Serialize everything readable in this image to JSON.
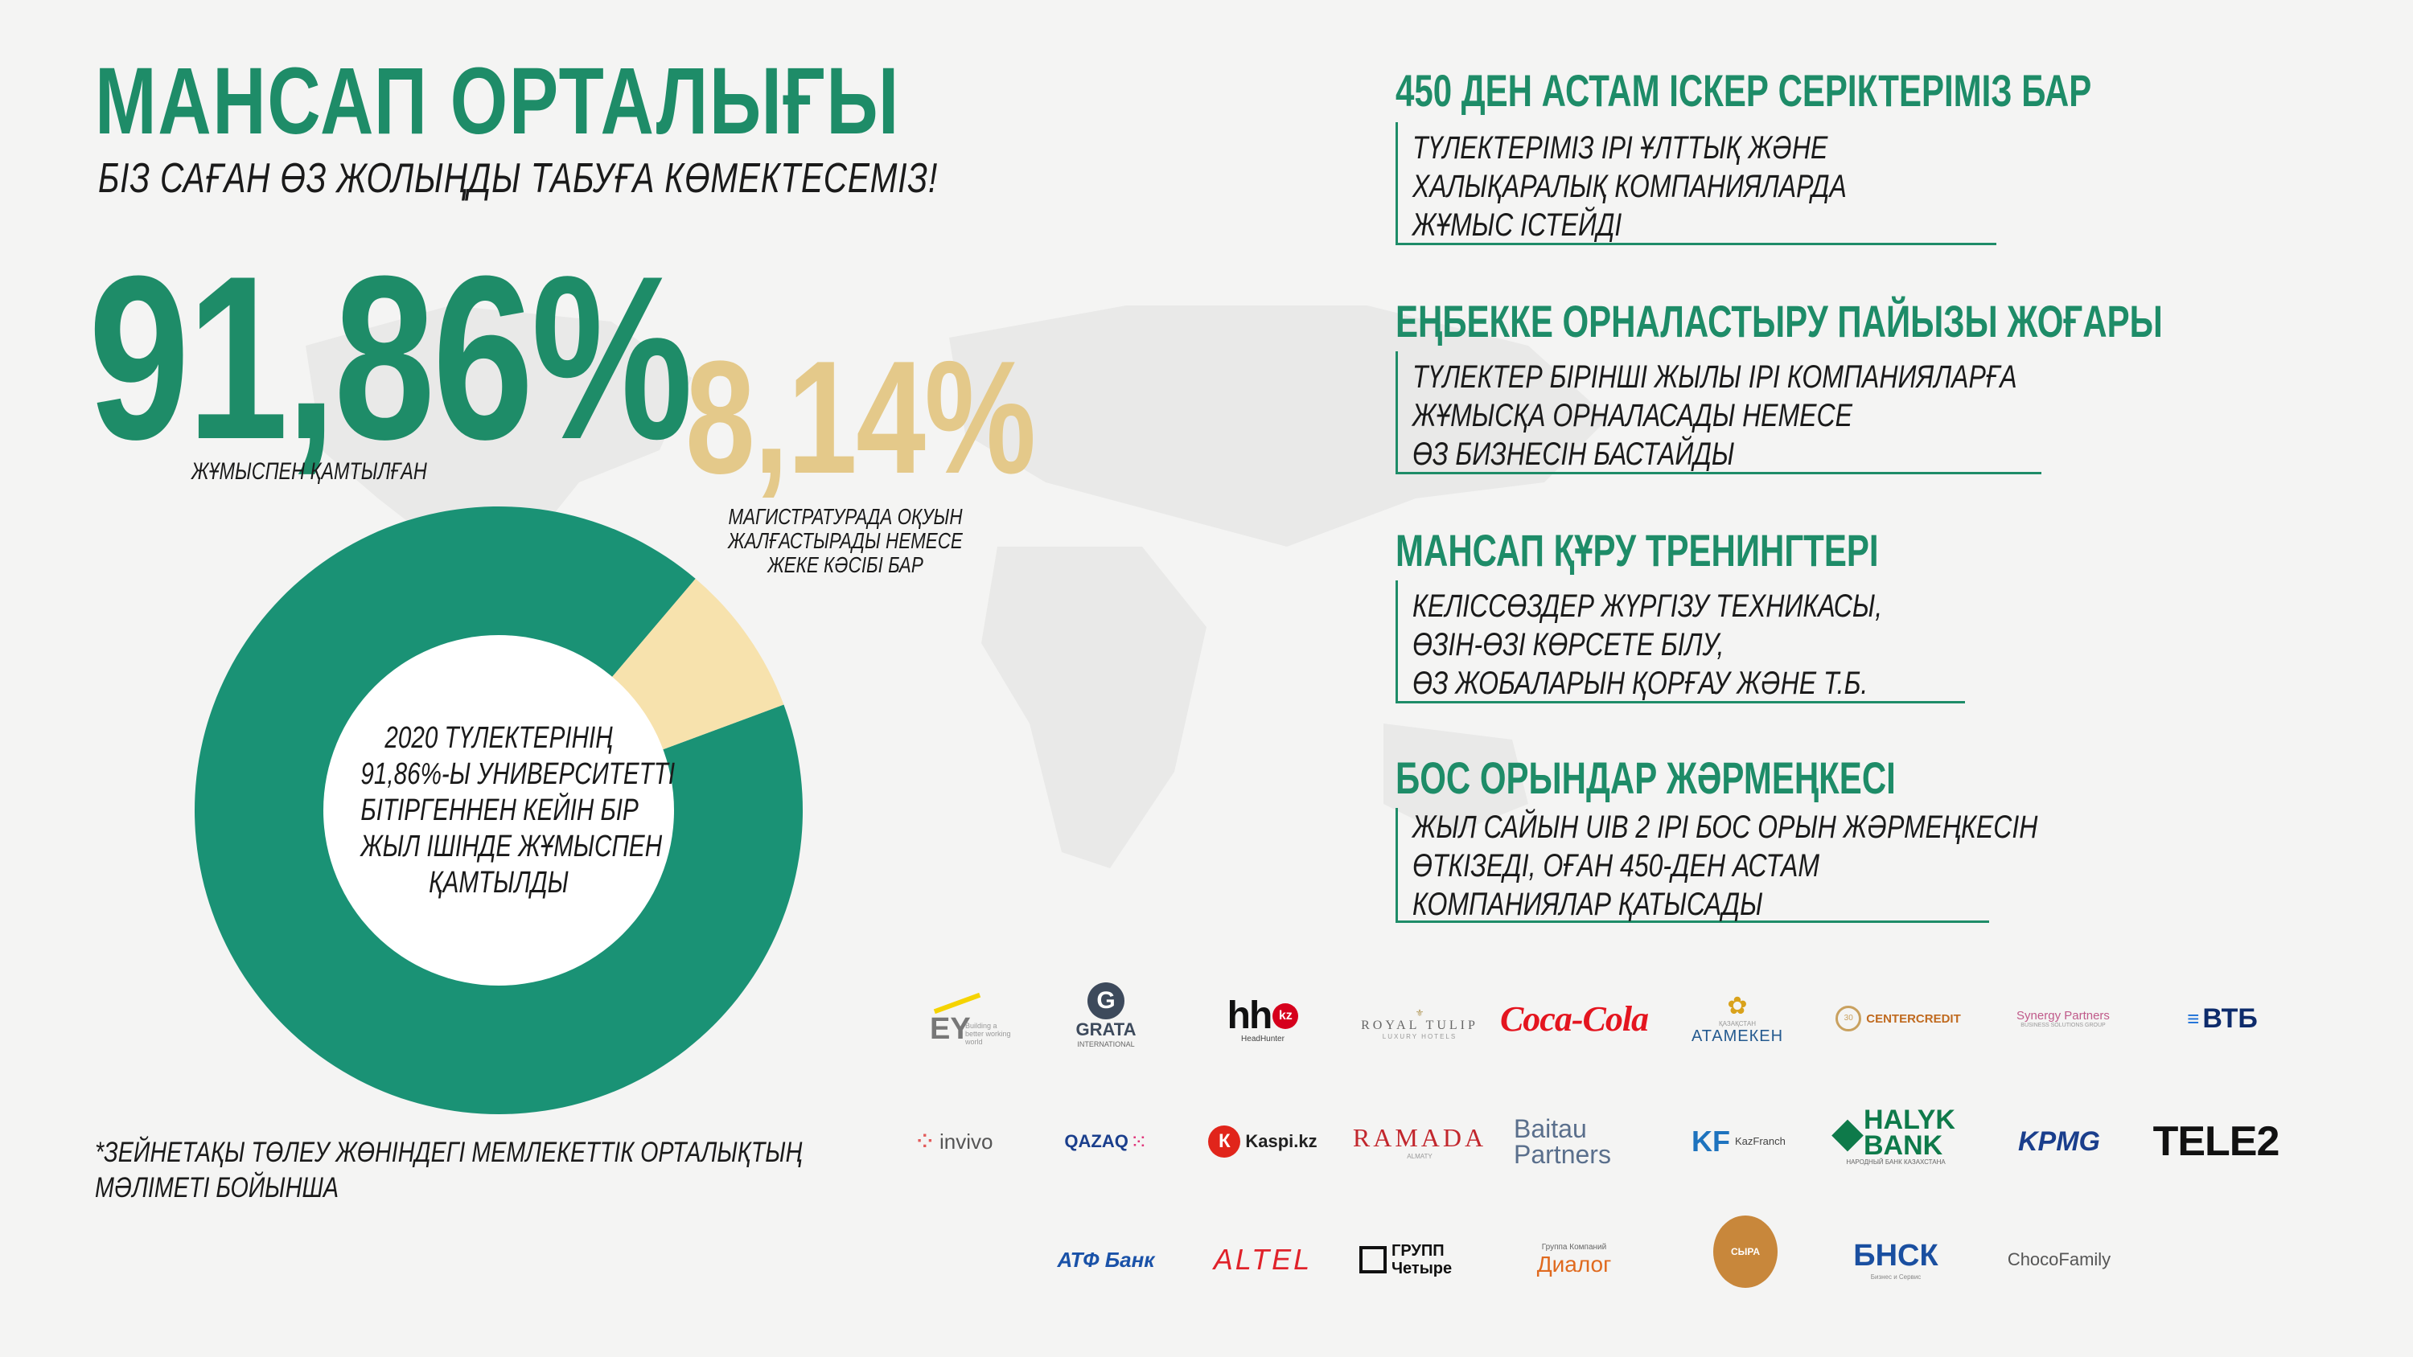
{
  "header": {
    "title": "МАНСАП ОРТАЛЫҒЫ",
    "subtitle": "БІЗ САҒАН ӨЗ ЖОЛЫҢДЫ ТАБУҒА КӨМЕКТЕСЕМІЗ!"
  },
  "stats": {
    "employed_value": "91,86%",
    "employed_label": "ЖҰМЫСПЕН ҚАМТЫЛҒАН",
    "other_value": "8,14%",
    "other_label": [
      "МАГИСТРАТУРАДА ОҚУЫН",
      "ЖАЛҒАСТЫРАДЫ НЕМЕСЕ",
      "ЖЕКЕ КӘСІБІ БАР"
    ]
  },
  "chart_data": {
    "type": "pie",
    "categories": [
      "ЖҰМЫСПЕН ҚАМТЫЛҒАН",
      "МАГИСТРАТУРАДА ОҚУЫН ЖАЛҒАСТЫРАДЫ НЕМЕСЕ ЖЕКЕ КӘСІБІ БАР"
    ],
    "values": [
      91.86,
      8.14
    ],
    "colors": [
      "#1a9275",
      "#f7e2ad"
    ],
    "center_text": [
      "2020 ТҮЛЕКТЕРІНІҢ",
      "91,86%-Ы УНИВЕРСИТЕТТІ",
      "БІТІРГЕННЕН КЕЙІН БІР",
      "ЖЫЛ ІШІНДЕ ЖҰМЫСПЕН",
      "ҚАМТЫЛДЫ"
    ]
  },
  "footnote": [
    "*ЗЕЙНЕТАҚЫ ТӨЛЕУ ЖӨНІНДЕГІ МЕМЛЕКЕТТІК ОРТАЛЫҚТЫҢ",
    "МӘЛІМЕТІ БОЙЫНША"
  ],
  "blocks": [
    {
      "heading": "450 ДЕН АСТАМ ІСКЕР СЕРІКТЕРІМІЗ БАР",
      "lines": [
        "ТҮЛЕКТЕРІМІЗ ІРІ ҰЛТТЫҚ ЖӘНЕ",
        "ХАЛЫҚАРАЛЫҚ КОМПАНИЯЛАРДА",
        "ЖҰМЫС ІСТЕЙДІ"
      ]
    },
    {
      "heading": "ЕҢБЕККЕ ОРНАЛАСТЫРУ ПАЙЫЗЫ ЖОҒАРЫ",
      "lines": [
        "ТҮЛЕКТЕР БІРІНШІ ЖЫЛЫ ІРІ КОМПАНИЯЛАРҒА",
        "ЖҰМЫСҚА ОРНАЛАСАДЫ НЕМЕСЕ",
        "ӨЗ БИЗНЕСІН БАСТАЙДЫ"
      ]
    },
    {
      "heading": "МАНСАП ҚҰРУ ТРЕНИНГТЕРІ",
      "lines": [
        "КЕЛІССӨЗДЕР ЖҮРГІЗУ ТЕХНИКАСЫ,",
        "ӨЗІН-ӨЗІ КӨРСЕТЕ БІЛУ,",
        "ӨЗ ЖОБАЛАРЫН ҚОРҒАУ ЖӘНЕ Т.Б."
      ]
    },
    {
      "heading": "БОС ОРЫНДАР ЖӘРМЕҢКЕСІ",
      "lines": [
        "ЖЫЛ САЙЫН UIB 2 ІРІ БОС ОРЫН ЖӘРМЕҢКЕСІН",
        "ӨТКІЗЕДІ, ОҒАН 450-ДЕН АСТАМ",
        "КОМПАНИЯЛАР ҚАТЫСАДЫ"
      ]
    }
  ],
  "logos": [
    [
      "EY",
      "GRATA",
      "hh.kz",
      "ROYAL TULIP",
      "Coca-Cola",
      "АТАМЕКЕН",
      "CENTERCREDIT",
      "Synergy Partners",
      "ВТБ"
    ],
    [
      "invivo",
      "QAZAQ",
      "Kaspi.kz",
      "RAMADA",
      "Baitau Partners",
      "KazFranch",
      "HALYK BANK",
      "KPMG",
      "TELE2"
    ],
    [
      "АТФ Банк",
      "ALTEL",
      "ГРУПП Четыре",
      "Диалог",
      "СЫРА",
      "БНСК",
      "ChocoFamily"
    ]
  ],
  "logo_captions": {
    "ey": "Building a better working world",
    "grata": "INTERNATIONAL",
    "hh": "HeadHunter",
    "royal_tulip": "LUXURY HOTELS",
    "atameken": "ҚАЗАҚСТАН",
    "synergy": "BUSINESS SOLUTIONS GROUP",
    "ramada": "ALMATY",
    "halyk": "НАРОДНЫЙ БАНК КАЗАХСТАНА",
    "dialog": "Группа Компаний",
    "bnsk": "Бизнес и Сервис"
  },
  "colors": {
    "green": "#1e8c68",
    "donut_green": "#1a9275",
    "donut_light": "#f7e2ad",
    "gold": "#e4c98a"
  }
}
